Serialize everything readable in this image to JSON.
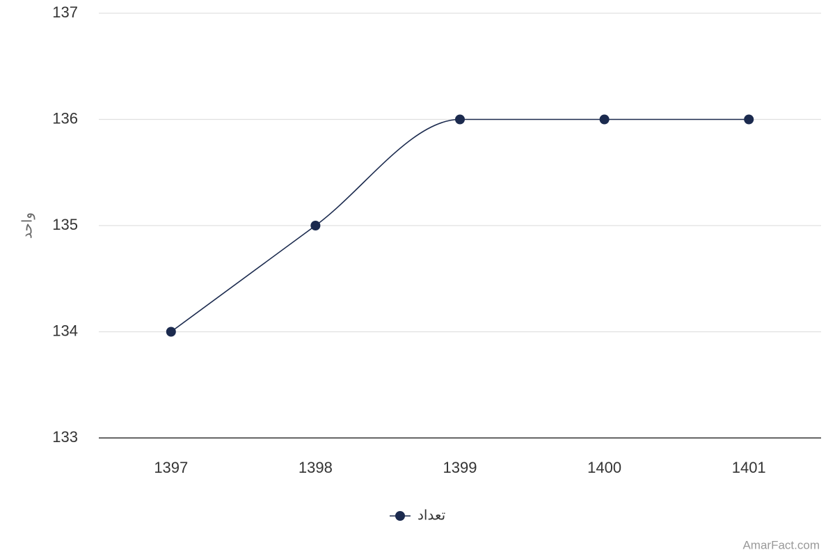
{
  "chart_data": {
    "type": "line",
    "y_label": "واحد",
    "categories": [
      "1397",
      "1398",
      "1399",
      "1400",
      "1401"
    ],
    "series": [
      {
        "name": "تعداد",
        "color": "#1b2a4e",
        "values": [
          134,
          135,
          136,
          136,
          136
        ]
      }
    ],
    "ylim": [
      133,
      137
    ],
    "yticks": [
      133,
      134,
      135,
      136,
      137
    ],
    "grid": true,
    "legend": "bottom",
    "smooth": true,
    "credit": "AmarFact.com"
  }
}
